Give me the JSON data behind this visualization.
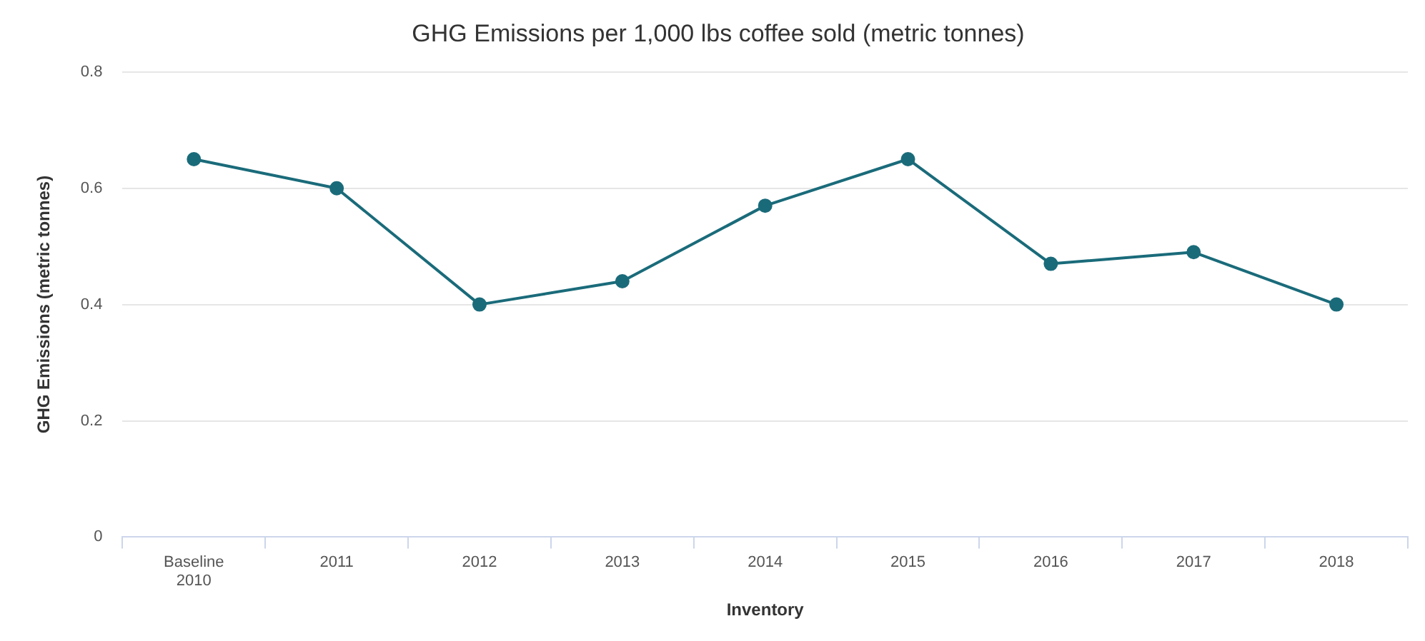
{
  "chart_data": {
    "type": "line",
    "title": "GHG Emissions per 1,000 lbs coffee sold (metric tonnes)",
    "xlabel": "Inventory",
    "ylabel": "GHG Emissions (metric tonnes)",
    "categories": [
      "Baseline 2010",
      "2011",
      "2012",
      "2013",
      "2014",
      "2015",
      "2016",
      "2017",
      "2018"
    ],
    "series": [
      {
        "color": "#1a6b7a",
        "values": [
          0.65,
          0.6,
          0.4,
          0.44,
          0.57,
          0.65,
          0.47,
          0.49,
          0.4
        ]
      }
    ],
    "ylim": [
      0,
      0.8
    ],
    "yticks": [
      0,
      0.2,
      0.4,
      0.6,
      0.8
    ],
    "grid": "y",
    "legend": false,
    "marker": "circle",
    "line_style": "solid"
  }
}
